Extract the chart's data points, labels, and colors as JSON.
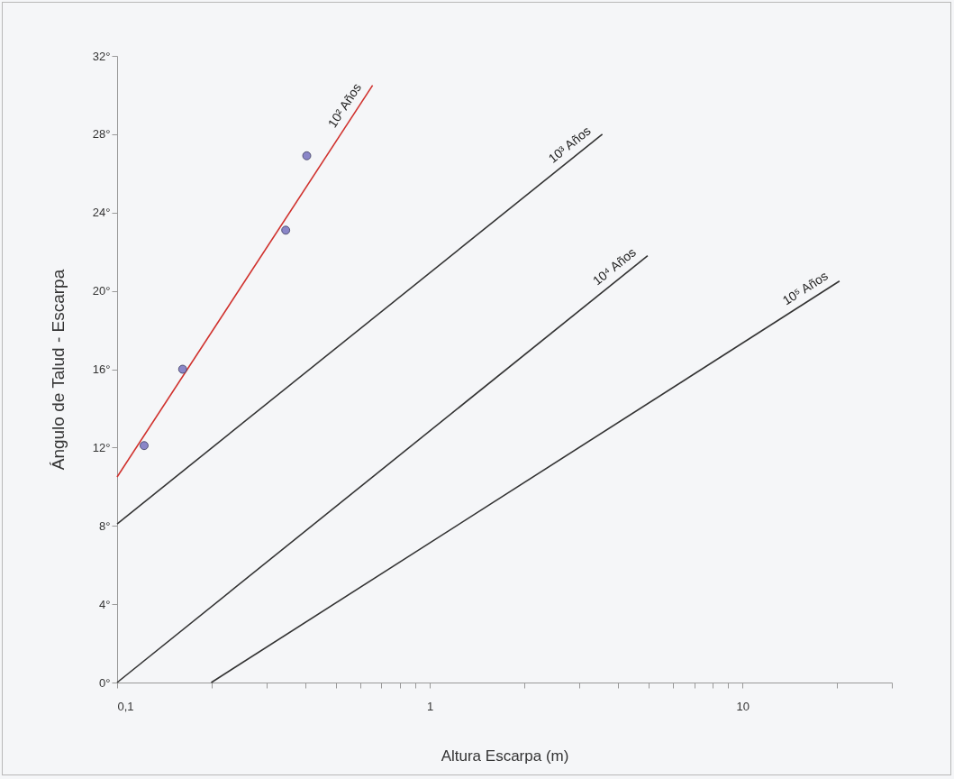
{
  "chart_data": {
    "type": "line",
    "xlabel": "Altura Escarpa (m)",
    "ylabel": "Ángulo de Talud - Escarpa",
    "log": "x",
    "grid": false,
    "xlim": [
      0.1,
      30
    ],
    "ylim": [
      0,
      32
    ],
    "xticks": [
      {
        "value": 0.1,
        "label": "0,1"
      },
      {
        "value": 0.2,
        "label": null
      },
      {
        "value": 0.3,
        "label": null
      },
      {
        "value": 0.4,
        "label": null
      },
      {
        "value": 0.5,
        "label": null
      },
      {
        "value": 0.6,
        "label": null
      },
      {
        "value": 0.7,
        "label": null
      },
      {
        "value": 0.8,
        "label": null
      },
      {
        "value": 0.9,
        "label": null
      },
      1,
      {
        "value": 2,
        "label": null
      },
      {
        "value": 3,
        "label": null
      },
      {
        "value": 4,
        "label": null
      },
      {
        "value": 5,
        "label": null
      },
      {
        "value": 6,
        "label": null
      },
      {
        "value": 7,
        "label": null
      },
      {
        "value": 8,
        "label": null
      },
      {
        "value": 9,
        "label": null
      },
      10,
      {
        "value": 20,
        "label": null
      },
      {
        "value": 30,
        "label": null
      }
    ],
    "yticks": [
      {
        "value": 0,
        "label": "0°"
      },
      {
        "value": 4,
        "label": "4°"
      },
      {
        "value": 8,
        "label": "8°"
      },
      {
        "value": 12,
        "label": "12°"
      },
      {
        "value": 16,
        "label": "16°"
      },
      {
        "value": 20,
        "label": "20°"
      },
      {
        "value": 24,
        "label": "24°"
      },
      {
        "value": 28,
        "label": "28°"
      },
      {
        "value": 32,
        "label": "32°"
      }
    ],
    "series": [
      {
        "name": "10² Años",
        "color": "#d0312d",
        "x": [
          0.1,
          0.656
        ],
        "values": [
          10.5,
          30.5
        ]
      },
      {
        "name": "10³ Años",
        "color": "#333333",
        "x": [
          0.1,
          3.56
        ],
        "values": [
          8.1,
          28.0
        ]
      },
      {
        "name": "10⁴ Años",
        "color": "#333333",
        "x": [
          0.1,
          4.97
        ],
        "values": [
          0,
          21.8
        ]
      },
      {
        "name": "10⁵ Años",
        "color": "#333333",
        "x": [
          0.2,
          20.4
        ],
        "values": [
          0,
          20.5
        ]
      },
      {
        "type": "scatter",
        "color": "#8a86c8",
        "marker": "circle",
        "x": [
          0.122,
          0.162,
          0.346,
          0.404
        ],
        "values": [
          12.1,
          16.0,
          23.1,
          26.9
        ]
      }
    ]
  }
}
